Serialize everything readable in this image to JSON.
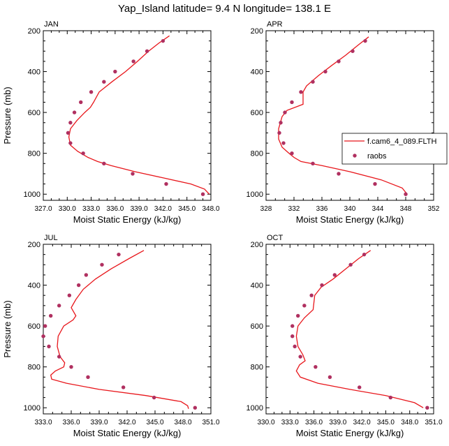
{
  "title": "Yap_Island  latitude= 9.4 N longitude= 138.1 E",
  "colors": {
    "model_line": "#e8161b",
    "raobs_dot": "#b03060",
    "axis": "#000000"
  },
  "legend": {
    "entries": [
      {
        "label": "f.cam6_4_089.FLTH",
        "marker": "line"
      },
      {
        "label": "raobs",
        "marker": "dot"
      }
    ]
  },
  "chart_data": [
    {
      "type": "line",
      "panel_label": "JAN",
      "xlabel": "Moist Static Energy (kJ/kg)",
      "ylabel": "Pressure (mb)",
      "xlim": [
        327.0,
        348.0
      ],
      "ylim": [
        1030,
        200
      ],
      "xticks": [
        327,
        330,
        333,
        336,
        339,
        342,
        345,
        348
      ],
      "xtick_labels": [
        "327.0",
        "330.0",
        "333.0",
        "336.0",
        "339.0",
        "342.0",
        "345.0",
        "348.0"
      ],
      "yticks": [
        200,
        400,
        600,
        800,
        1000
      ],
      "ytick_labels": [
        "200",
        "400",
        "600",
        "800",
        "1000"
      ],
      "series": [
        {
          "name": "f.cam6_4_089.FLTH",
          "kind": "line",
          "x": [
            342.8,
            341.5,
            340.2,
            338.8,
            337.3,
            335.6,
            334.0,
            333.3,
            332.9,
            332.2,
            331.2,
            330.4,
            330.2,
            330.4,
            331.3,
            332.6,
            333.8,
            335.5,
            338.5,
            342.0,
            345.5,
            347.2,
            347.8
          ],
          "y": [
            225,
            260,
            300,
            350,
            400,
            450,
            500,
            550,
            575,
            600,
            640,
            680,
            720,
            760,
            790,
            820,
            840,
            860,
            890,
            920,
            950,
            975,
            1000
          ]
        },
        {
          "name": "raobs",
          "kind": "scatter",
          "x": [
            342.0,
            340.0,
            338.3,
            336.0,
            334.6,
            333.0,
            331.7,
            330.9,
            330.4,
            330.1,
            330.4,
            332.0,
            334.6,
            338.2,
            342.4,
            347.0
          ],
          "y": [
            250,
            300,
            350,
            400,
            450,
            500,
            550,
            600,
            650,
            700,
            750,
            800,
            850,
            900,
            950,
            1000
          ]
        }
      ]
    },
    {
      "type": "line",
      "panel_label": "APR",
      "xlabel": "Moist Static Energy (kJ/kg)",
      "ylabel": "",
      "xlim": [
        328,
        352
      ],
      "ylim": [
        1030,
        200
      ],
      "xticks": [
        328,
        332,
        336,
        340,
        344,
        348,
        352
      ],
      "xtick_labels": [
        "328",
        "332",
        "336",
        "340",
        "344",
        "348",
        "352"
      ],
      "yticks": [
        200,
        400,
        600,
        800,
        1000
      ],
      "ytick_labels": [
        "200",
        "400",
        "600",
        "800",
        "1000"
      ],
      "series": [
        {
          "name": "f.cam6_4_089.FLTH",
          "kind": "line",
          "x": [
            342.7,
            341.2,
            339.4,
            337.4,
            335.5,
            333.8,
            333.3,
            333.3,
            331.0,
            330.3,
            329.8,
            329.8,
            330.3,
            331.3,
            332.0,
            333.0,
            336.0,
            340.0,
            344.5,
            347.5,
            348.2
          ],
          "y": [
            230,
            270,
            320,
            370,
            420,
            470,
            500,
            560,
            590,
            620,
            680,
            730,
            770,
            800,
            820,
            840,
            860,
            890,
            930,
            970,
            1000
          ]
        },
        {
          "name": "raobs",
          "kind": "scatter",
          "x": [
            342.2,
            340.4,
            338.4,
            336.5,
            334.7,
            333.0,
            331.7,
            330.7,
            330.1,
            329.9,
            330.5,
            331.7,
            334.7,
            338.4,
            343.6,
            348.0
          ],
          "y": [
            250,
            300,
            350,
            400,
            450,
            500,
            550,
            600,
            650,
            700,
            750,
            800,
            850,
            900,
            950,
            1000
          ]
        }
      ]
    },
    {
      "type": "line",
      "panel_label": "JUL",
      "xlabel": "Moist Static Energy (kJ/kg)",
      "ylabel": "Pressure (mb)",
      "xlim": [
        333.0,
        351.0
      ],
      "ylim": [
        1030,
        200
      ],
      "xticks": [
        333,
        336,
        339,
        342,
        345,
        348,
        351
      ],
      "xtick_labels": [
        "333.0",
        "336.0",
        "339.0",
        "342.0",
        "345.0",
        "348.0",
        "351.0"
      ],
      "yticks": [
        200,
        400,
        600,
        800,
        1000
      ],
      "ytick_labels": [
        "200",
        "400",
        "600",
        "800",
        "1000"
      ],
      "series": [
        {
          "name": "f.cam6_4_089.FLTH",
          "kind": "line",
          "x": [
            343.8,
            342.2,
            340.3,
            338.6,
            337.3,
            336.5,
            336.0,
            336.5,
            336.2,
            335.2,
            334.6,
            334.5,
            334.8,
            335.3,
            335.2,
            334.3,
            333.8,
            333.9,
            335.5,
            339.0,
            344.0,
            347.8,
            348.5,
            348.6
          ],
          "y": [
            230,
            270,
            320,
            370,
            420,
            470,
            510,
            550,
            570,
            600,
            650,
            700,
            750,
            780,
            800,
            820,
            840,
            860,
            880,
            910,
            940,
            970,
            990,
            1005
          ]
        },
        {
          "name": "raobs",
          "kind": "scatter",
          "x": [
            341.1,
            339.3,
            337.6,
            336.8,
            335.8,
            334.7,
            333.8,
            333.2,
            333.0,
            333.6,
            334.7,
            336.0,
            337.8,
            341.6,
            344.9,
            349.3
          ],
          "y": [
            250,
            300,
            350,
            400,
            450,
            500,
            550,
            600,
            650,
            700,
            750,
            800,
            850,
            900,
            950,
            1000
          ]
        }
      ]
    },
    {
      "type": "line",
      "panel_label": "OCT",
      "xlabel": "Moist Static Energy (kJ/kg)",
      "ylabel": "",
      "xlim": [
        330.0,
        351.0
      ],
      "ylim": [
        1030,
        200
      ],
      "xticks": [
        330,
        333,
        336,
        339,
        342,
        345,
        348,
        351
      ],
      "xtick_labels": [
        "330.0",
        "333.0",
        "336.0",
        "339.0",
        "342.0",
        "345.0",
        "348.0",
        "351.0"
      ],
      "yticks": [
        200,
        400,
        600,
        800,
        1000
      ],
      "ytick_labels": [
        "200",
        "400",
        "600",
        "800",
        "1000"
      ],
      "series": [
        {
          "name": "f.cam6_4_089.FLTH",
          "kind": "line",
          "x": [
            343.1,
            341.6,
            340.0,
            338.4,
            336.9,
            336.1,
            335.9,
            334.8,
            334.0,
            333.8,
            334.0,
            334.6,
            334.9,
            334.2,
            333.8,
            334.3,
            336.5,
            340.5,
            345.0,
            348.6,
            349.7
          ],
          "y": [
            230,
            270,
            320,
            370,
            410,
            450,
            520,
            560,
            600,
            650,
            700,
            740,
            770,
            790,
            820,
            850,
            880,
            910,
            940,
            975,
            1000
          ]
        },
        {
          "name": "raobs",
          "kind": "scatter",
          "x": [
            342.3,
            340.6,
            338.6,
            337.0,
            335.7,
            334.8,
            334.0,
            333.3,
            333.3,
            333.6,
            334.3,
            336.2,
            338.0,
            341.7,
            345.6,
            350.2
          ],
          "y": [
            250,
            300,
            350,
            400,
            450,
            500,
            550,
            600,
            650,
            700,
            750,
            800,
            850,
            900,
            950,
            1000
          ]
        }
      ]
    }
  ]
}
